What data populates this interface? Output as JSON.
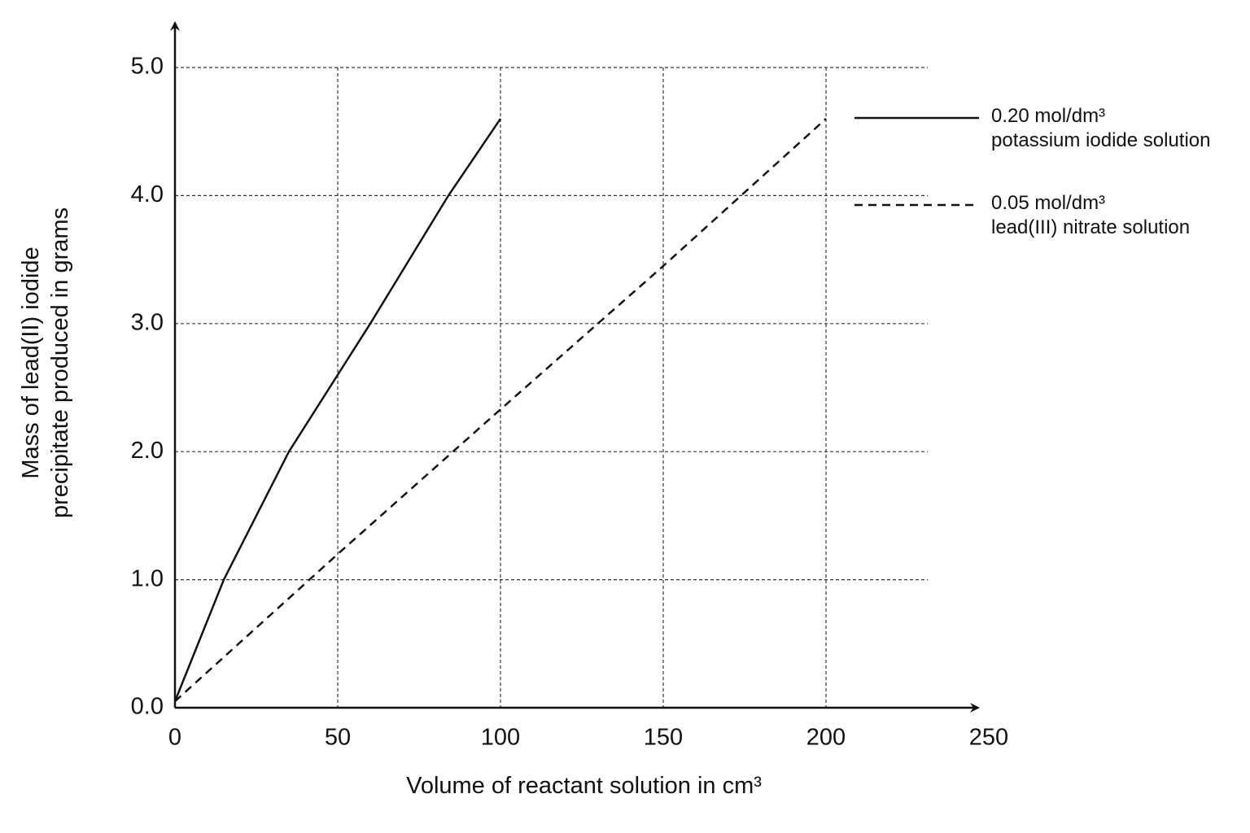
{
  "chart_data": {
    "type": "line",
    "xlabel": "Volume of reactant solution in cm³",
    "ylabel": "Mass of lead(II) iodide\nprecipitate produced in grams",
    "xlim": [
      0,
      250
    ],
    "ylim": [
      0,
      5
    ],
    "xticks": [
      0,
      50,
      100,
      150,
      200,
      250
    ],
    "yticks": [
      {
        "value": 0,
        "label": "0.0"
      },
      {
        "value": 1,
        "label": "1.0"
      },
      {
        "value": 2,
        "label": "2.0"
      },
      {
        "value": 3,
        "label": "3.0"
      },
      {
        "value": 4,
        "label": "4.0"
      },
      {
        "value": 5,
        "label": "5.0"
      }
    ],
    "grid": true,
    "legend": "right",
    "series": [
      {
        "name": "0.20 mol/dm³\npotassium iodide solution",
        "color": "#111111",
        "dash": "solid",
        "x": [
          0,
          15,
          35,
          50,
          60,
          84,
          100
        ],
        "values": [
          0.05,
          1.0,
          2.0,
          2.6,
          3.0,
          4.0,
          4.6
        ]
      },
      {
        "name": "0.05 mol/dm³\nlead(III) nitrate solution",
        "color": "#111111",
        "dash": "dashed",
        "x": [
          0,
          50,
          100,
          150,
          200
        ],
        "values": [
          0.05,
          1.2,
          2.33,
          3.45,
          4.6
        ]
      }
    ]
  }
}
